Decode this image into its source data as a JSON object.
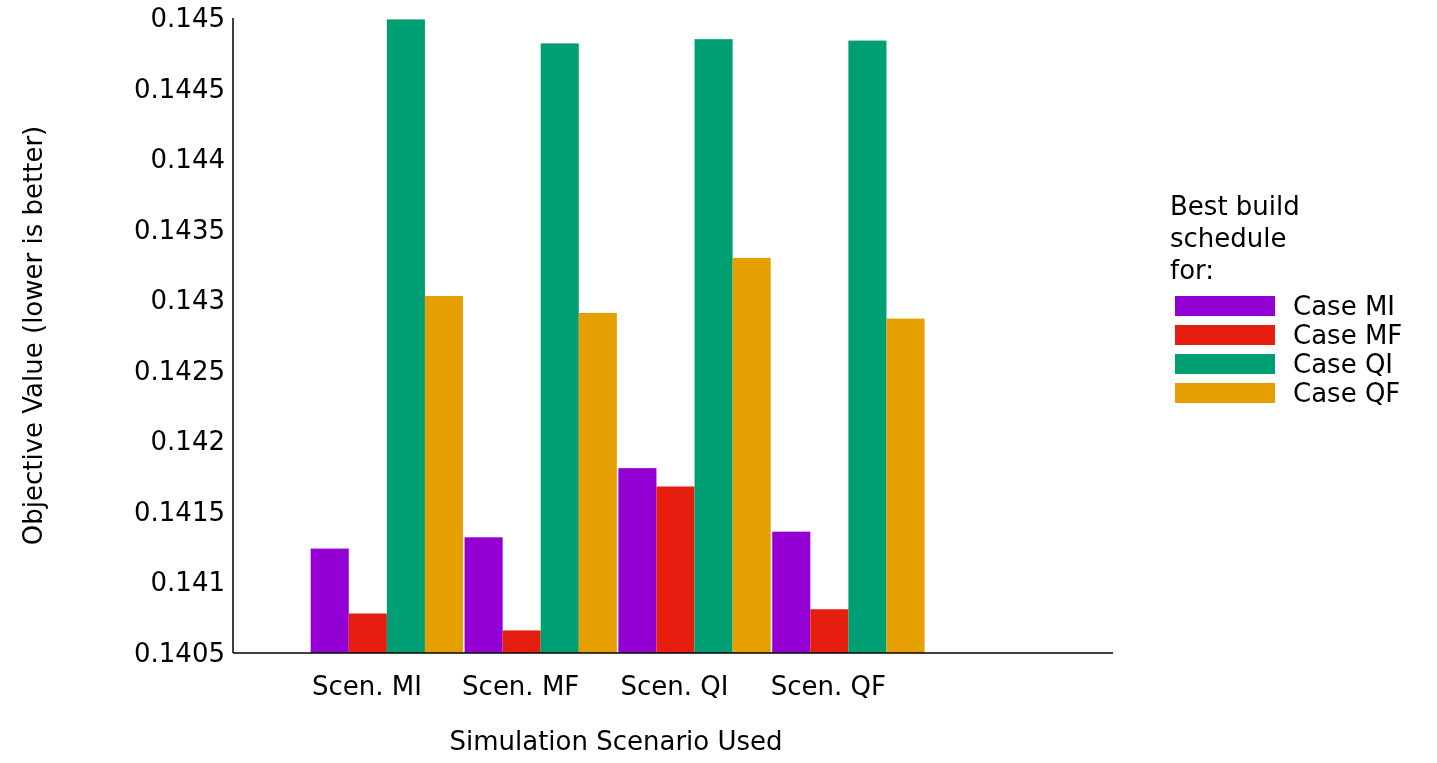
{
  "chart_data": {
    "type": "bar",
    "xlabel": "Simulation Scenario Used",
    "ylabel": "Objective Value (lower is better)",
    "legend_title": "Best build schedule for:",
    "categories": [
      "Scen. MI",
      "Scen. MF",
      "Scen. QI",
      "Scen. QF"
    ],
    "series": [
      {
        "name": "Case MI",
        "color": "#9400d3",
        "values": [
          0.14124,
          0.14132,
          0.14181,
          0.14136
        ]
      },
      {
        "name": "Case MF",
        "color": "#e51e10",
        "values": [
          0.14078,
          0.14066,
          0.14168,
          0.14081
        ]
      },
      {
        "name": "Case QI",
        "color": "#009e73",
        "values": [
          0.14499,
          0.14482,
          0.14485,
          0.14484
        ]
      },
      {
        "name": "Case QF",
        "color": "#e69f00",
        "values": [
          0.14303,
          0.14291,
          0.1433,
          0.14287
        ]
      }
    ],
    "ylim": [
      0.1405,
      0.145
    ],
    "yticks": [
      0.1405,
      0.141,
      0.1415,
      0.142,
      0.1425,
      0.143,
      0.1435,
      0.144,
      0.1445,
      0.145
    ],
    "grid": false,
    "legend": "right"
  }
}
